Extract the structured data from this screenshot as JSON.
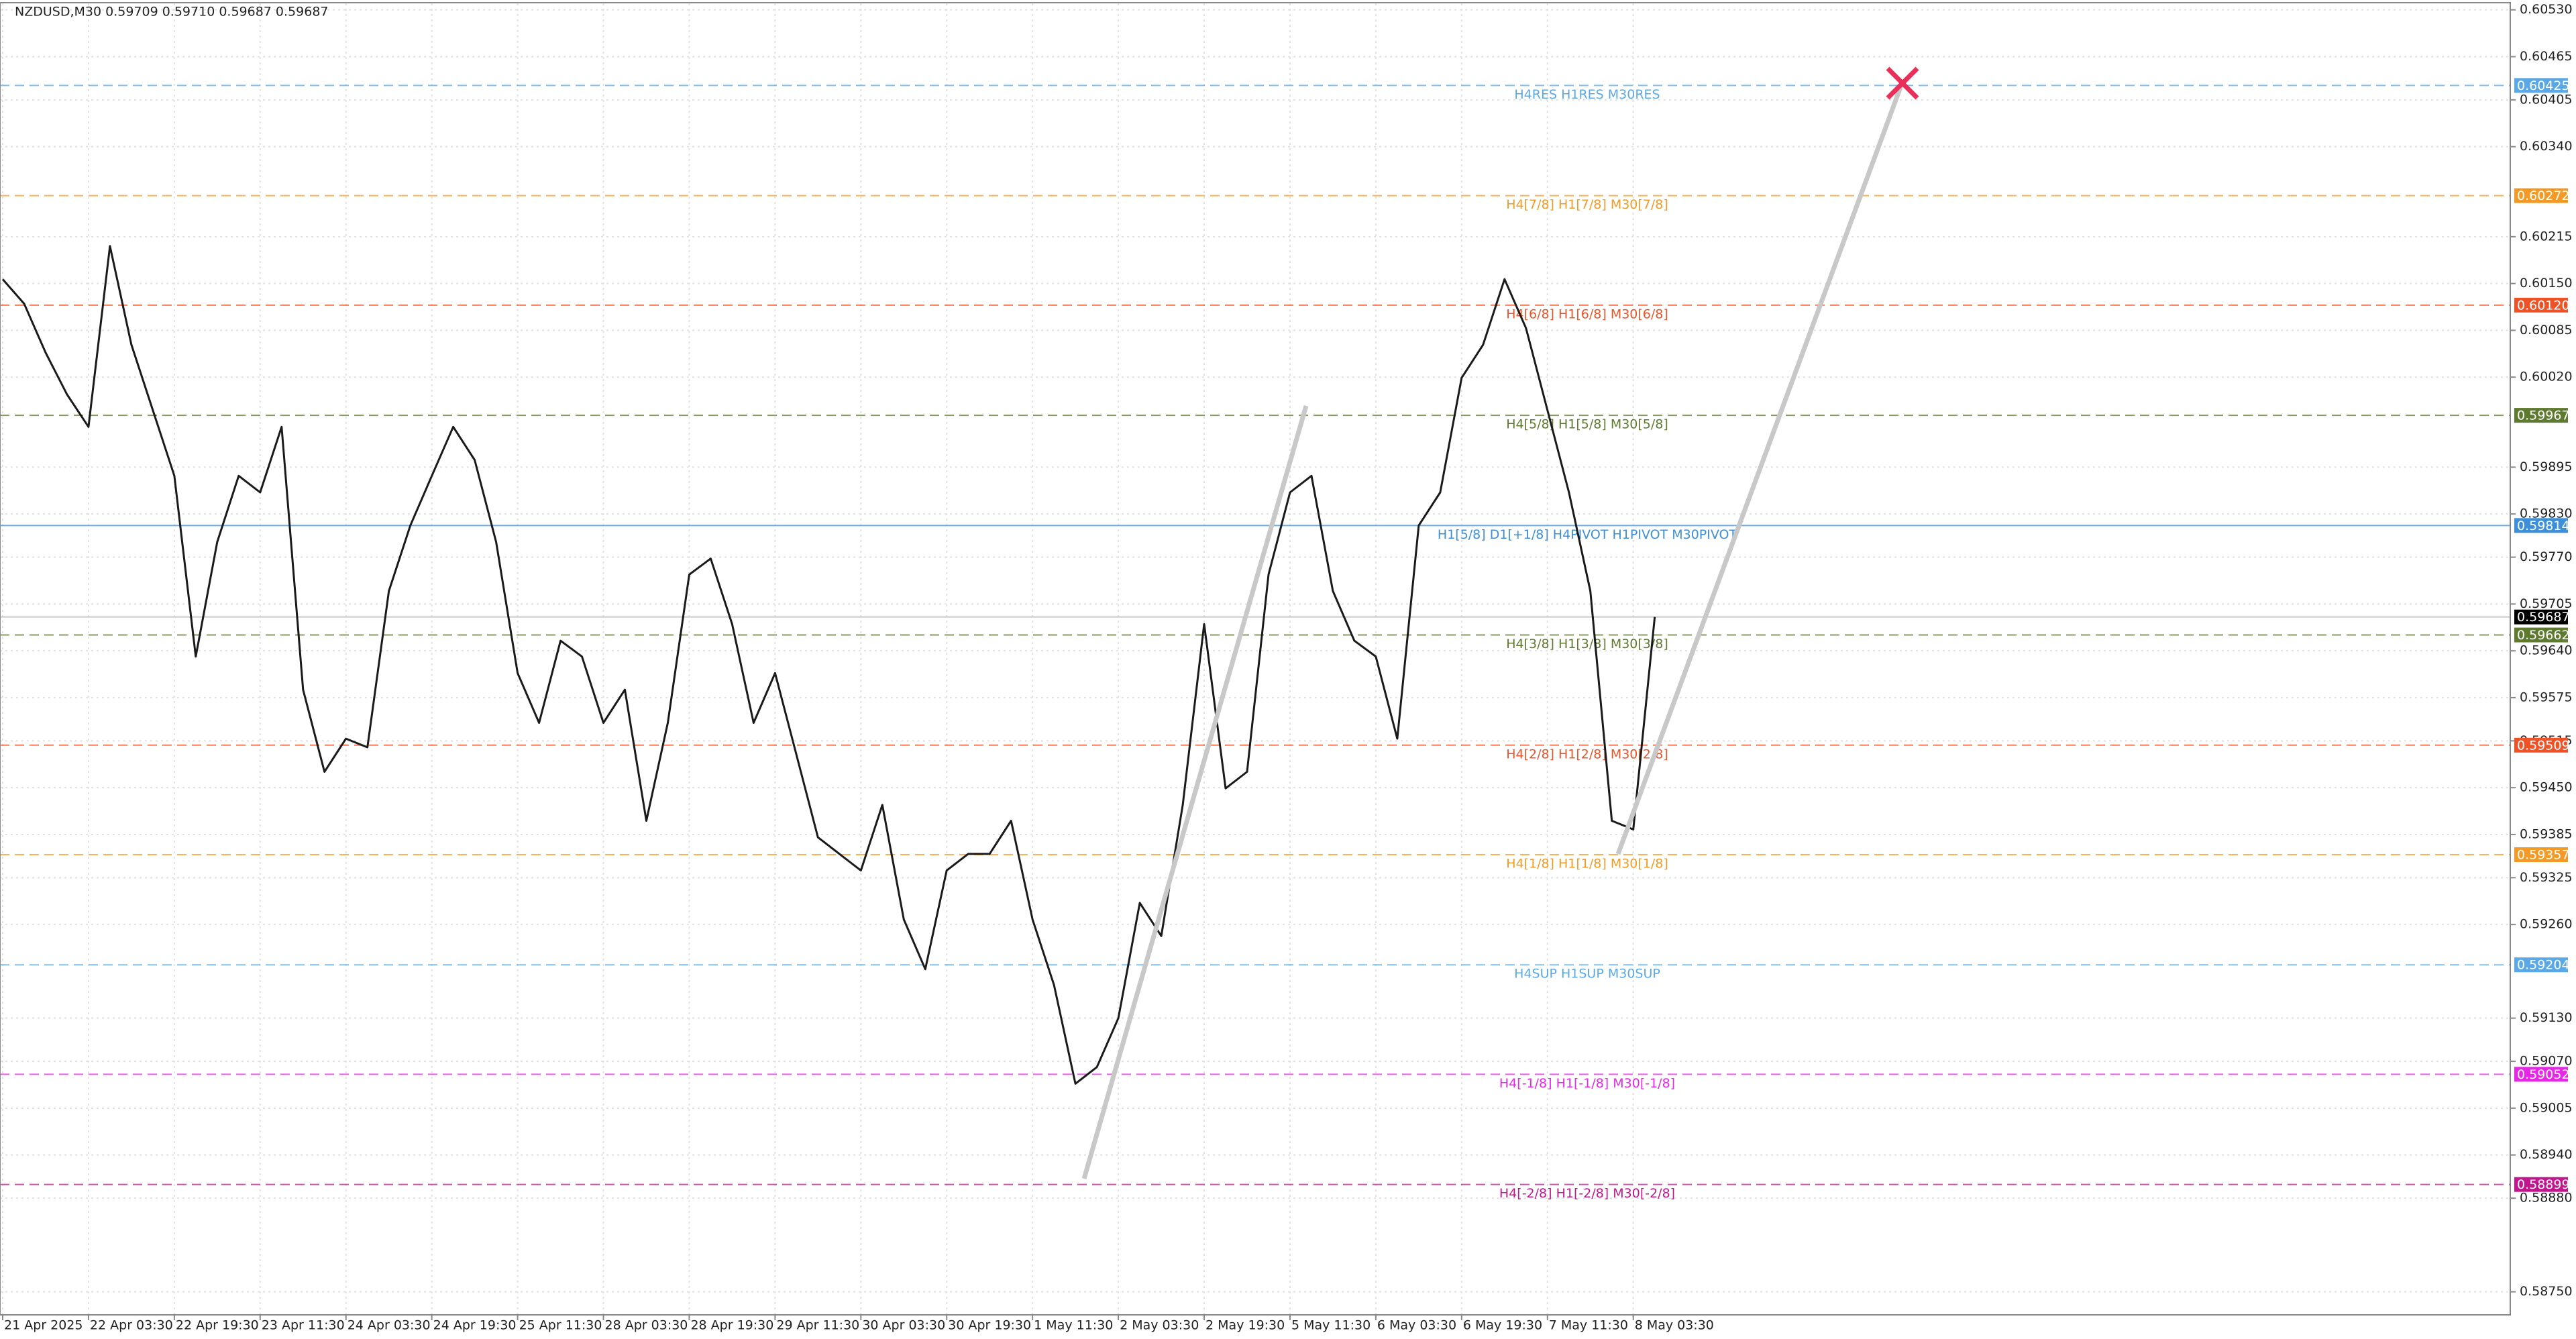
{
  "chart_data": {
    "type": "line",
    "title": "NZDUSD,M30  0.59709 0.59710 0.59687 0.59687",
    "color": "#1a1a1a",
    "grid": true,
    "x": [
      0,
      8,
      16,
      24,
      32,
      40,
      48,
      56,
      64,
      72,
      80,
      88,
      96,
      104,
      112,
      120,
      128,
      136,
      144,
      152,
      160,
      168,
      176,
      184,
      192,
      200,
      208,
      216,
      224,
      232,
      240,
      248,
      256,
      264,
      272,
      280,
      288,
      296,
      304,
      312,
      320,
      328,
      336,
      344,
      352,
      360,
      368,
      376,
      384,
      392,
      400,
      408,
      416,
      424,
      432,
      440,
      448,
      456,
      464,
      472,
      480,
      488,
      496,
      504,
      512,
      520,
      528,
      536,
      544,
      552,
      560,
      568,
      576,
      584,
      592,
      600,
      608,
      616
    ],
    "values": [
      0.60156,
      0.60122,
      0.60054,
      0.59996,
      0.59951,
      0.60202,
      0.60065,
      0.59974,
      0.59883,
      0.59632,
      0.59791,
      0.59883,
      0.5986,
      0.59951,
      0.59586,
      0.59472,
      0.59518,
      0.59506,
      0.59723,
      0.59814,
      0.59883,
      0.59951,
      0.59905,
      0.59791,
      0.59609,
      0.5954,
      0.59654,
      0.59632,
      0.5954,
      0.59586,
      0.59404,
      0.5954,
      0.59746,
      0.59768,
      0.59677,
      0.5954,
      0.59609,
      0.59495,
      0.59381,
      0.59358,
      0.59335,
      0.59426,
      0.59267,
      0.59198,
      0.59335,
      0.59358,
      0.59358,
      0.59404,
      0.59267,
      0.59176,
      0.59039,
      0.59062,
      0.5913,
      0.5929,
      0.59244,
      0.59426,
      0.59677,
      0.59449,
      0.59472,
      0.59746,
      0.5986,
      0.59883,
      0.59723,
      0.59654,
      0.59632,
      0.59518,
      0.59814,
      0.5986,
      0.60019,
      0.60065,
      0.60156,
      0.60088,
      0.59974,
      0.5986,
      0.59723,
      0.59404,
      0.59392,
      0.59687
    ],
    "xlim": [
      -1,
      935
    ],
    "ylim": [
      0.58718,
      0.60539
    ],
    "xticks": [
      {
        "value": 0,
        "label": "21 Apr 2025"
      },
      {
        "value": 32,
        "label": "22 Apr 03:30"
      },
      {
        "value": 64,
        "label": "22 Apr 19:30"
      },
      {
        "value": 96,
        "label": "23 Apr 11:30"
      },
      {
        "value": 128,
        "label": "24 Apr 03:30"
      },
      {
        "value": 160,
        "label": "24 Apr 19:30"
      },
      {
        "value": 192,
        "label": "25 Apr 11:30"
      },
      {
        "value": 224,
        "label": "28 Apr 03:30"
      },
      {
        "value": 256,
        "label": "28 Apr 19:30"
      },
      {
        "value": 288,
        "label": "29 Apr 11:30"
      },
      {
        "value": 320,
        "label": "30 Apr 03:30"
      },
      {
        "value": 352,
        "label": "30 Apr 19:30"
      },
      {
        "value": 384,
        "label": "1 May 11:30"
      },
      {
        "value": 416,
        "label": "2 May 03:30"
      },
      {
        "value": 448,
        "label": "2 May 19:30"
      },
      {
        "value": 480,
        "label": "5 May 11:30"
      },
      {
        "value": 512,
        "label": "6 May 03:30"
      },
      {
        "value": 544,
        "label": "6 May 19:30"
      },
      {
        "value": 576,
        "label": "7 May 11:30"
      },
      {
        "value": 608,
        "label": "8 May 03:30"
      }
    ],
    "yticks": [
      {
        "value": 0.6053,
        "label": "0.60530"
      },
      {
        "value": 0.60465,
        "label": "0.60465"
      },
      {
        "value": 0.60405,
        "label": "0.60405"
      },
      {
        "value": 0.6034,
        "label": "0.60340"
      },
      {
        "value": 0.60215,
        "label": "0.60215"
      },
      {
        "value": 0.6015,
        "label": "0.60150"
      },
      {
        "value": 0.60085,
        "label": "0.60085"
      },
      {
        "value": 0.6002,
        "label": "0.60020"
      },
      {
        "value": 0.59895,
        "label": "0.59895"
      },
      {
        "value": 0.5983,
        "label": "0.59830"
      },
      {
        "value": 0.5977,
        "label": "0.59770"
      },
      {
        "value": 0.59705,
        "label": "0.59705"
      },
      {
        "value": 0.5964,
        "label": "0.59640"
      },
      {
        "value": 0.59575,
        "label": "0.59575"
      },
      {
        "value": 0.59515,
        "label": "0.59515"
      },
      {
        "value": 0.5945,
        "label": "0.59450"
      },
      {
        "value": 0.59385,
        "label": "0.59385"
      },
      {
        "value": 0.59325,
        "label": "0.59325"
      },
      {
        "value": 0.5926,
        "label": "0.59260"
      },
      {
        "value": 0.5913,
        "label": "0.59130"
      },
      {
        "value": 0.5907,
        "label": "0.59070"
      },
      {
        "value": 0.59005,
        "label": "0.59005"
      },
      {
        "value": 0.5894,
        "label": "0.58940"
      },
      {
        "value": 0.5888,
        "label": "0.58880"
      },
      {
        "value": 0.5875,
        "label": "0.58750"
      }
    ],
    "levels": [
      {
        "value": 0.60425,
        "value_label": "0.60425",
        "text": "H4RES H1RES M30RES",
        "color": "#5aa9e6",
        "dashed": true
      },
      {
        "value": 0.60272,
        "value_label": "0.60272",
        "text": "H4[7/8] H1[7/8] M30[7/8]",
        "color": "#f39a26",
        "dashed": true
      },
      {
        "value": 0.6012,
        "value_label": "0.60120",
        "text": "H4[6/8] H1[6/8] M30[6/8]",
        "color": "#ee5328",
        "dashed": true
      },
      {
        "value": 0.59967,
        "value_label": "0.59967",
        "text": "H4[5/8] H1[5/8] M30[5/8]",
        "color": "#5e7a2f",
        "dashed": true
      },
      {
        "value": 0.59814,
        "value_label": "0.59814",
        "text": "H1[5/8] D1[+1/8] H4PIVOT H1PIVOT M30PIVOT",
        "color": "#3d8fd9",
        "dashed": false
      },
      {
        "value": 0.59662,
        "value_label": "0.59662",
        "text": "H4[3/8] H1[3/8] M30[3/8]",
        "color": "#5e7a2f",
        "dashed": true
      },
      {
        "value": 0.59509,
        "value_label": "0.59509",
        "text": "H4[2/8] H1[2/8] M30[2/8]",
        "color": "#ee5328",
        "dashed": true
      },
      {
        "value": 0.59357,
        "value_label": "0.59357",
        "text": "H4[1/8] H1[1/8] M30[1/8]",
        "color": "#f39a26",
        "dashed": true
      },
      {
        "value": 0.59204,
        "value_label": "0.59204",
        "text": "H4SUP H1SUP M30SUP",
        "color": "#5aa9e6",
        "dashed": true
      },
      {
        "value": 0.59052,
        "value_label": "0.59052",
        "text": "H4[-1/8] H1[-1/8] M30[-1/8]",
        "color": "#e627e6",
        "dashed": true
      },
      {
        "value": 0.58899,
        "value_label": "0.58899",
        "text": "H4[-2/8] H1[-2/8] M30[-2/8]",
        "color": "#c0178f",
        "dashed": true
      }
    ],
    "current_price": 0.59687
  }
}
